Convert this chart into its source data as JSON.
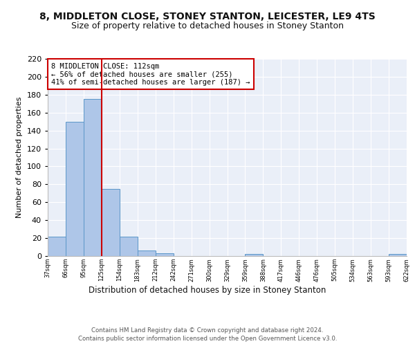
{
  "title": "8, MIDDLETON CLOSE, STONEY STANTON, LEICESTER, LE9 4TS",
  "subtitle": "Size of property relative to detached houses in Stoney Stanton",
  "xlabel": "Distribution of detached houses by size in Stoney Stanton",
  "ylabel": "Number of detached properties",
  "bin_labels": [
    "37sqm",
    "66sqm",
    "95sqm",
    "125sqm",
    "154sqm",
    "183sqm",
    "212sqm",
    "242sqm",
    "271sqm",
    "300sqm",
    "329sqm",
    "359sqm",
    "388sqm",
    "417sqm",
    "446sqm",
    "476sqm",
    "505sqm",
    "534sqm",
    "563sqm",
    "593sqm",
    "622sqm"
  ],
  "bar_heights": [
    22,
    150,
    175,
    75,
    22,
    6,
    3,
    0,
    0,
    0,
    0,
    2,
    0,
    0,
    0,
    0,
    0,
    0,
    0,
    2
  ],
  "bar_color": "#aec6e8",
  "bar_edge_color": "#5a96c8",
  "vline_color": "#cc0000",
  "annotation_text": "8 MIDDLETON CLOSE: 112sqm\n← 56% of detached houses are smaller (255)\n41% of semi-detached houses are larger (187) →",
  "annotation_box_color": "#ffffff",
  "annotation_box_edge_color": "#cc0000",
  "ylim": [
    0,
    220
  ],
  "yticks": [
    0,
    20,
    40,
    60,
    80,
    100,
    120,
    140,
    160,
    180,
    200,
    220
  ],
  "background_color": "#eaeff8",
  "footer_text": "Contains HM Land Registry data © Crown copyright and database right 2024.\nContains public sector information licensed under the Open Government Licence v3.0.",
  "grid_color": "#ffffff",
  "title_fontsize": 10,
  "subtitle_fontsize": 9
}
